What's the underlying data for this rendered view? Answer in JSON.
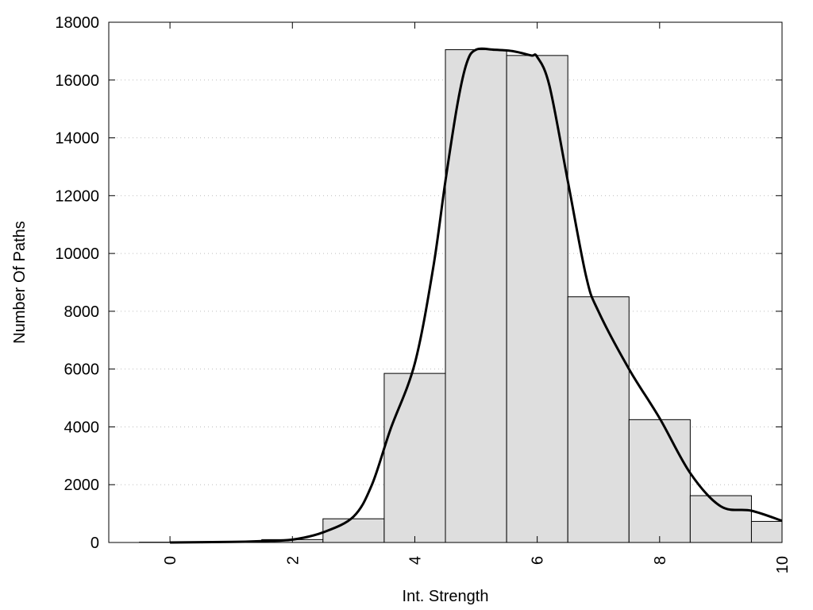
{
  "chart_data": {
    "type": "bar",
    "xlabel": "Int. Strength",
    "ylabel": "Number Of Paths",
    "xlim": [
      -1,
      10
    ],
    "ylim": [
      0,
      18000
    ],
    "x_ticks": [
      0,
      2,
      4,
      6,
      8,
      10
    ],
    "y_ticks": [
      0,
      2000,
      4000,
      6000,
      8000,
      10000,
      12000,
      14000,
      16000,
      18000
    ],
    "grid": "horizontal dotted",
    "bar_color": "#dedede",
    "bins": [
      {
        "x": 0,
        "value": 10
      },
      {
        "x": 1,
        "value": 30
      },
      {
        "x": 2,
        "value": 100
      },
      {
        "x": 3,
        "value": 820
      },
      {
        "x": 4,
        "value": 5850
      },
      {
        "x": 5,
        "value": 17050
      },
      {
        "x": 6,
        "value": 16850
      },
      {
        "x": 7,
        "value": 8500
      },
      {
        "x": 8,
        "value": 4250
      },
      {
        "x": 9,
        "value": 1620
      },
      {
        "x": 10,
        "value": 730
      }
    ],
    "curve": {
      "x": [
        0,
        1,
        1.5,
        2,
        2.5,
        3,
        3.3,
        3.6,
        4,
        4.3,
        4.5,
        4.7,
        4.85,
        5,
        5.3,
        5.6,
        5.9,
        6,
        6.2,
        6.5,
        6.8,
        7,
        7.5,
        8,
        8.5,
        9,
        9.5,
        10
      ],
      "y": [
        0,
        20,
        50,
        100,
        350,
        900,
        2000,
        3900,
        6200,
        9500,
        12500,
        15200,
        16600,
        17050,
        17050,
        17000,
        16850,
        16800,
        15800,
        12500,
        9200,
        8000,
        6000,
        4300,
        2400,
        1250,
        1100,
        750
      ]
    }
  }
}
